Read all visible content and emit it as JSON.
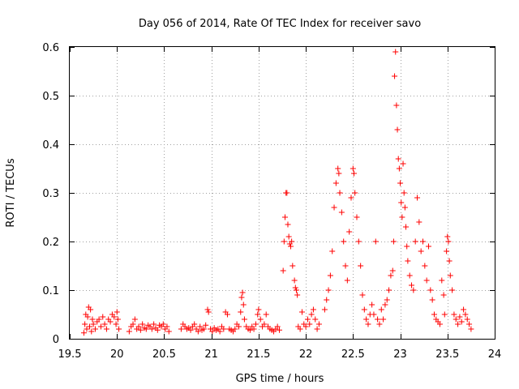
{
  "chart_data": {
    "type": "scatter",
    "title": "Day 056 of 2014, Rate Of TEC Index for receiver savo",
    "xlabel": "GPS time / hours",
    "ylabel": "ROTI / TECUs",
    "xlim": [
      19.5,
      24
    ],
    "ylim": [
      0,
      0.6
    ],
    "xticks": [
      19.5,
      20,
      20.5,
      21,
      21.5,
      22,
      22.5,
      23,
      23.5,
      24
    ],
    "xtick_labels": [
      "19.5",
      "20",
      "20.5",
      "21",
      "21.5",
      "22",
      "22.5",
      "23",
      "23.5",
      "24"
    ],
    "yticks": [
      0,
      0.1,
      0.2,
      0.3,
      0.4,
      0.5,
      0.6
    ],
    "ytick_labels": [
      "0",
      "0.1",
      "0.2",
      "0.3",
      "0.4",
      "0.5",
      "0.6"
    ],
    "grid": true,
    "marker": "+",
    "color": "#ff0000",
    "series": [
      {
        "name": "ROTI",
        "points": [
          [
            19.65,
            0.012
          ],
          [
            19.66,
            0.03
          ],
          [
            19.67,
            0.05
          ],
          [
            19.68,
            0.02
          ],
          [
            19.69,
            0.045
          ],
          [
            19.7,
            0.065
          ],
          [
            19.71,
            0.025
          ],
          [
            19.72,
            0.06
          ],
          [
            19.73,
            0.015
          ],
          [
            19.74,
            0.04
          ],
          [
            19.75,
            0.03
          ],
          [
            19.77,
            0.02
          ],
          [
            19.79,
            0.035
          ],
          [
            19.81,
            0.04
          ],
          [
            19.83,
            0.025
          ],
          [
            19.85,
            0.045
          ],
          [
            19.87,
            0.03
          ],
          [
            19.89,
            0.02
          ],
          [
            19.91,
            0.04
          ],
          [
            19.93,
            0.035
          ],
          [
            19.95,
            0.05
          ],
          [
            19.97,
            0.045
          ],
          [
            19.99,
            0.03
          ],
          [
            20.0,
            0.055
          ],
          [
            20.01,
            0.04
          ],
          [
            20.02,
            0.02
          ],
          [
            20.13,
            0.015
          ],
          [
            20.15,
            0.025
          ],
          [
            20.17,
            0.03
          ],
          [
            20.19,
            0.04
          ],
          [
            20.21,
            0.02
          ],
          [
            20.23,
            0.025
          ],
          [
            20.25,
            0.018
          ],
          [
            20.27,
            0.03
          ],
          [
            20.29,
            0.022
          ],
          [
            20.31,
            0.02
          ],
          [
            20.33,
            0.028
          ],
          [
            20.35,
            0.025
          ],
          [
            20.37,
            0.02
          ],
          [
            20.39,
            0.03
          ],
          [
            20.41,
            0.022
          ],
          [
            20.43,
            0.018
          ],
          [
            20.45,
            0.028
          ],
          [
            20.47,
            0.025
          ],
          [
            20.49,
            0.03
          ],
          [
            20.51,
            0.02
          ],
          [
            20.53,
            0.025
          ],
          [
            20.55,
            0.015
          ],
          [
            20.68,
            0.02
          ],
          [
            20.7,
            0.03
          ],
          [
            20.72,
            0.025
          ],
          [
            20.74,
            0.02
          ],
          [
            20.76,
            0.022
          ],
          [
            20.78,
            0.018
          ],
          [
            20.8,
            0.025
          ],
          [
            20.82,
            0.03
          ],
          [
            20.84,
            0.02
          ],
          [
            20.86,
            0.015
          ],
          [
            20.88,
            0.025
          ],
          [
            20.9,
            0.018
          ],
          [
            20.92,
            0.02
          ],
          [
            20.94,
            0.028
          ],
          [
            20.96,
            0.06
          ],
          [
            20.97,
            0.055
          ],
          [
            20.99,
            0.02
          ],
          [
            21.01,
            0.015
          ],
          [
            21.03,
            0.022
          ],
          [
            21.05,
            0.018
          ],
          [
            21.07,
            0.02
          ],
          [
            21.09,
            0.015
          ],
          [
            21.11,
            0.025
          ],
          [
            21.13,
            0.02
          ],
          [
            21.15,
            0.055
          ],
          [
            21.17,
            0.05
          ],
          [
            21.19,
            0.02
          ],
          [
            21.21,
            0.018
          ],
          [
            21.23,
            0.015
          ],
          [
            21.25,
            0.02
          ],
          [
            21.27,
            0.03
          ],
          [
            21.29,
            0.025
          ],
          [
            21.31,
            0.055
          ],
          [
            21.32,
            0.085
          ],
          [
            21.33,
            0.095
          ],
          [
            21.34,
            0.07
          ],
          [
            21.35,
            0.04
          ],
          [
            21.37,
            0.025
          ],
          [
            21.39,
            0.02
          ],
          [
            21.41,
            0.018
          ],
          [
            21.43,
            0.025
          ],
          [
            21.45,
            0.02
          ],
          [
            21.47,
            0.03
          ],
          [
            21.49,
            0.05
          ],
          [
            21.5,
            0.06
          ],
          [
            21.52,
            0.04
          ],
          [
            21.54,
            0.025
          ],
          [
            21.56,
            0.03
          ],
          [
            21.58,
            0.05
          ],
          [
            21.6,
            0.025
          ],
          [
            21.62,
            0.02
          ],
          [
            21.64,
            0.018
          ],
          [
            21.66,
            0.015
          ],
          [
            21.68,
            0.02
          ],
          [
            21.7,
            0.025
          ],
          [
            21.72,
            0.018
          ],
          [
            21.76,
            0.14
          ],
          [
            21.77,
            0.2
          ],
          [
            21.78,
            0.25
          ],
          [
            21.79,
            0.3
          ],
          [
            21.8,
            0.3
          ],
          [
            21.81,
            0.235
          ],
          [
            21.82,
            0.21
          ],
          [
            21.83,
            0.195
          ],
          [
            21.84,
            0.19
          ],
          [
            21.85,
            0.2
          ],
          [
            21.86,
            0.15
          ],
          [
            21.88,
            0.12
          ],
          [
            21.89,
            0.105
          ],
          [
            21.9,
            0.1
          ],
          [
            21.91,
            0.09
          ],
          [
            21.92,
            0.025
          ],
          [
            21.94,
            0.02
          ],
          [
            21.96,
            0.055
          ],
          [
            21.98,
            0.03
          ],
          [
            22.0,
            0.025
          ],
          [
            22.02,
            0.04
          ],
          [
            22.04,
            0.03
          ],
          [
            22.06,
            0.05
          ],
          [
            22.08,
            0.06
          ],
          [
            22.1,
            0.04
          ],
          [
            22.12,
            0.02
          ],
          [
            22.14,
            0.03
          ],
          [
            22.2,
            0.06
          ],
          [
            22.22,
            0.08
          ],
          [
            22.24,
            0.1
          ],
          [
            22.26,
            0.13
          ],
          [
            22.28,
            0.18
          ],
          [
            22.3,
            0.27
          ],
          [
            22.32,
            0.32
          ],
          [
            22.34,
            0.35
          ],
          [
            22.35,
            0.34
          ],
          [
            22.36,
            0.3
          ],
          [
            22.38,
            0.26
          ],
          [
            22.4,
            0.2
          ],
          [
            22.42,
            0.15
          ],
          [
            22.44,
            0.12
          ],
          [
            22.46,
            0.22
          ],
          [
            22.48,
            0.29
          ],
          [
            22.5,
            0.35
          ],
          [
            22.51,
            0.34
          ],
          [
            22.52,
            0.3
          ],
          [
            22.54,
            0.25
          ],
          [
            22.56,
            0.2
          ],
          [
            22.58,
            0.15
          ],
          [
            22.6,
            0.09
          ],
          [
            22.62,
            0.06
          ],
          [
            22.64,
            0.04
          ],
          [
            22.66,
            0.03
          ],
          [
            22.68,
            0.05
          ],
          [
            22.7,
            0.07
          ],
          [
            22.72,
            0.05
          ],
          [
            22.74,
            0.2
          ],
          [
            22.76,
            0.04
          ],
          [
            22.78,
            0.03
          ],
          [
            22.8,
            0.06
          ],
          [
            22.82,
            0.04
          ],
          [
            22.84,
            0.07
          ],
          [
            22.86,
            0.08
          ],
          [
            22.88,
            0.1
          ],
          [
            22.9,
            0.13
          ],
          [
            22.92,
            0.14
          ],
          [
            22.93,
            0.2
          ],
          [
            22.94,
            0.54
          ],
          [
            22.95,
            0.59
          ],
          [
            22.96,
            0.48
          ],
          [
            22.97,
            0.43
          ],
          [
            22.98,
            0.37
          ],
          [
            22.99,
            0.35
          ],
          [
            23.0,
            0.32
          ],
          [
            23.01,
            0.28
          ],
          [
            23.02,
            0.25
          ],
          [
            23.03,
            0.36
          ],
          [
            23.04,
            0.3
          ],
          [
            23.05,
            0.27
          ],
          [
            23.06,
            0.23
          ],
          [
            23.07,
            0.19
          ],
          [
            23.08,
            0.16
          ],
          [
            23.1,
            0.13
          ],
          [
            23.12,
            0.11
          ],
          [
            23.14,
            0.1
          ],
          [
            23.16,
            0.2
          ],
          [
            23.18,
            0.29
          ],
          [
            23.2,
            0.24
          ],
          [
            23.22,
            0.18
          ],
          [
            23.24,
            0.2
          ],
          [
            23.26,
            0.15
          ],
          [
            23.28,
            0.12
          ],
          [
            23.3,
            0.19
          ],
          [
            23.32,
            0.1
          ],
          [
            23.34,
            0.08
          ],
          [
            23.36,
            0.05
          ],
          [
            23.38,
            0.04
          ],
          [
            23.4,
            0.035
          ],
          [
            23.42,
            0.03
          ],
          [
            23.44,
            0.12
          ],
          [
            23.46,
            0.09
          ],
          [
            23.47,
            0.05
          ],
          [
            23.49,
            0.18
          ],
          [
            23.5,
            0.21
          ],
          [
            23.51,
            0.2
          ],
          [
            23.52,
            0.16
          ],
          [
            23.53,
            0.13
          ],
          [
            23.55,
            0.1
          ],
          [
            23.57,
            0.05
          ],
          [
            23.59,
            0.04
          ],
          [
            23.61,
            0.03
          ],
          [
            23.63,
            0.045
          ],
          [
            23.65,
            0.035
          ],
          [
            23.67,
            0.06
          ],
          [
            23.69,
            0.05
          ],
          [
            23.71,
            0.04
          ],
          [
            23.73,
            0.03
          ],
          [
            23.75,
            0.02
          ]
        ]
      }
    ]
  }
}
